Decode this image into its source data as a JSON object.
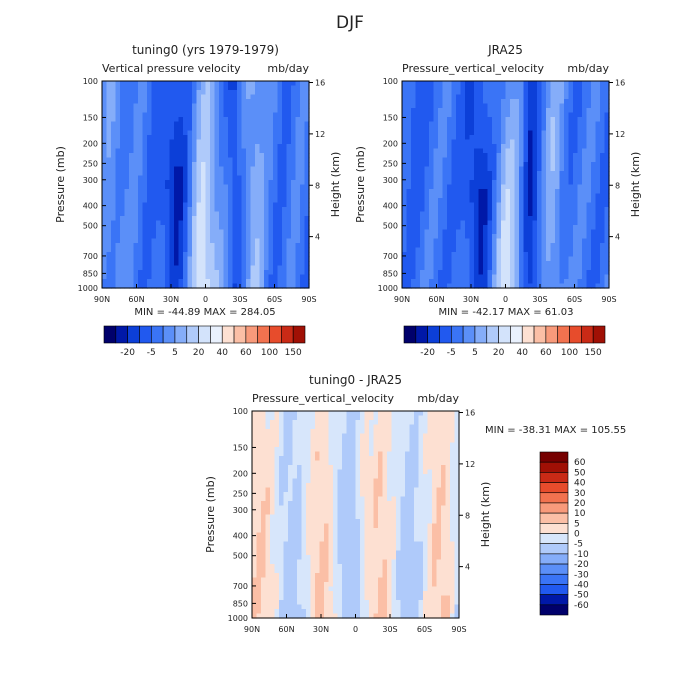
{
  "figure_title": "DJF",
  "colors": {
    "blue_scale": [
      "#00006b",
      "#0018a8",
      "#0c3fd8",
      "#2159ef",
      "#3a74f6",
      "#5b8ff8",
      "#85adf9",
      "#afcafa",
      "#d3e3fb",
      "#e9f1fd"
    ],
    "red_scale": [
      "#fde0d2",
      "#fbbfa6",
      "#f89a7b",
      "#f2724f",
      "#e74c2c",
      "#c92a16",
      "#a01005",
      "#760000"
    ],
    "near_zero": "#e9f1fd"
  },
  "chart_data": [
    {
      "type": "heatmap",
      "panel": "model",
      "title": "tuning0 (yrs 1979-1979)",
      "subtitle_left": "Vertical pressure velocity",
      "subtitle_right": "mb/day",
      "ylabel": "Pressure (mb)",
      "ylabel_right": "Height (km)",
      "x_ticks": [
        "90N",
        "60N",
        "30N",
        "0",
        "30S",
        "60S",
        "90S"
      ],
      "y_ticks": [
        "100",
        "150",
        "200",
        "250",
        "300",
        "400",
        "500",
        "700",
        "850",
        "1000"
      ],
      "y_ticks_right": [
        "16",
        "12",
        "8",
        "4"
      ],
      "ylim": [
        1000,
        100
      ],
      "stats": "MIN = -44.89   MAX = 284.05",
      "colorbar_labels": [
        "-20",
        "-5",
        "5",
        "20",
        "40",
        "60",
        "100",
        "150"
      ]
    },
    {
      "type": "heatmap",
      "panel": "obs",
      "title": "JRA25",
      "subtitle_left": "Pressure_vertical_velocity",
      "subtitle_right": "mb/day",
      "ylabel": "Pressure (mb)",
      "ylabel_right": "Height (km)",
      "x_ticks": [
        "90N",
        "60N",
        "30N",
        "0",
        "30S",
        "60S",
        "90S"
      ],
      "y_ticks": [
        "100",
        "150",
        "200",
        "250",
        "300",
        "400",
        "500",
        "700",
        "850",
        "1000"
      ],
      "y_ticks_right": [
        "16",
        "12",
        "8",
        "4"
      ],
      "ylim": [
        1000,
        100
      ],
      "stats": "MIN = -42.17   MAX =  61.03",
      "colorbar_labels": [
        "-20",
        "-5",
        "5",
        "20",
        "40",
        "60",
        "100",
        "150"
      ]
    },
    {
      "type": "heatmap",
      "panel": "difference",
      "title": "tuning0 - JRA25",
      "subtitle_left": "Pressure_vertical_velocity",
      "subtitle_right": "mb/day",
      "ylabel": "Pressure (mb)",
      "ylabel_right": "Height (km)",
      "x_ticks": [
        "90N",
        "60N",
        "30N",
        "0",
        "30S",
        "60S",
        "90S"
      ],
      "y_ticks": [
        "100",
        "150",
        "200",
        "250",
        "300",
        "400",
        "500",
        "700",
        "850",
        "1000"
      ],
      "y_ticks_right": [
        "16",
        "12",
        "8",
        "4"
      ],
      "ylim": [
        1000,
        100
      ],
      "stats": "MIN = -38.31   MAX = 105.55",
      "colorbar_labels": [
        "60",
        "50",
        "40",
        "30",
        "20",
        "10",
        "5",
        "0",
        "-5",
        "-10",
        "-20",
        "-30",
        "-40",
        "-50",
        "-60"
      ]
    }
  ]
}
